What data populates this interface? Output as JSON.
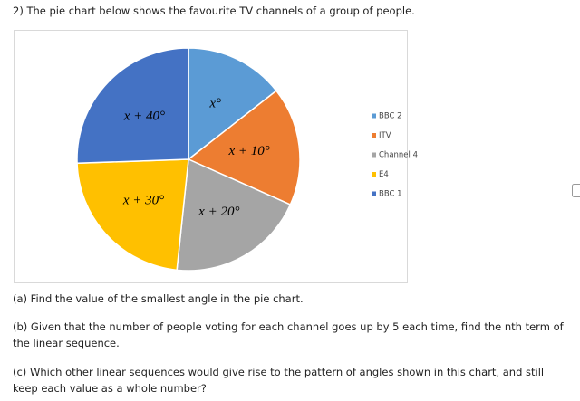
{
  "question": "2) The pie chart below shows the favourite TV channels of a group of people.",
  "chart_data": {
    "type": "pie",
    "categories": [
      "BBC 2",
      "ITV",
      "Channel 4",
      "E4",
      "BBC 1"
    ],
    "values": [
      52,
      62,
      72,
      82,
      92
    ],
    "colors": [
      "#5b9bd5",
      "#ed7d31",
      "#a5a5a5",
      "#ffc000",
      "#4472c4"
    ],
    "slice_labels": [
      "x°",
      "x + 10°",
      "x + 20°",
      "x + 30°",
      "x + 40°"
    ]
  },
  "parts": [
    "(a) Find the value of the smallest angle in the pie chart.",
    "(b) Given that the number of people voting for each channel goes up by 5 each time, find the nth term of the linear sequence.",
    "(c) Which other linear sequences would give rise to the pattern of angles shown in this chart, and still keep each value as a whole number?"
  ]
}
